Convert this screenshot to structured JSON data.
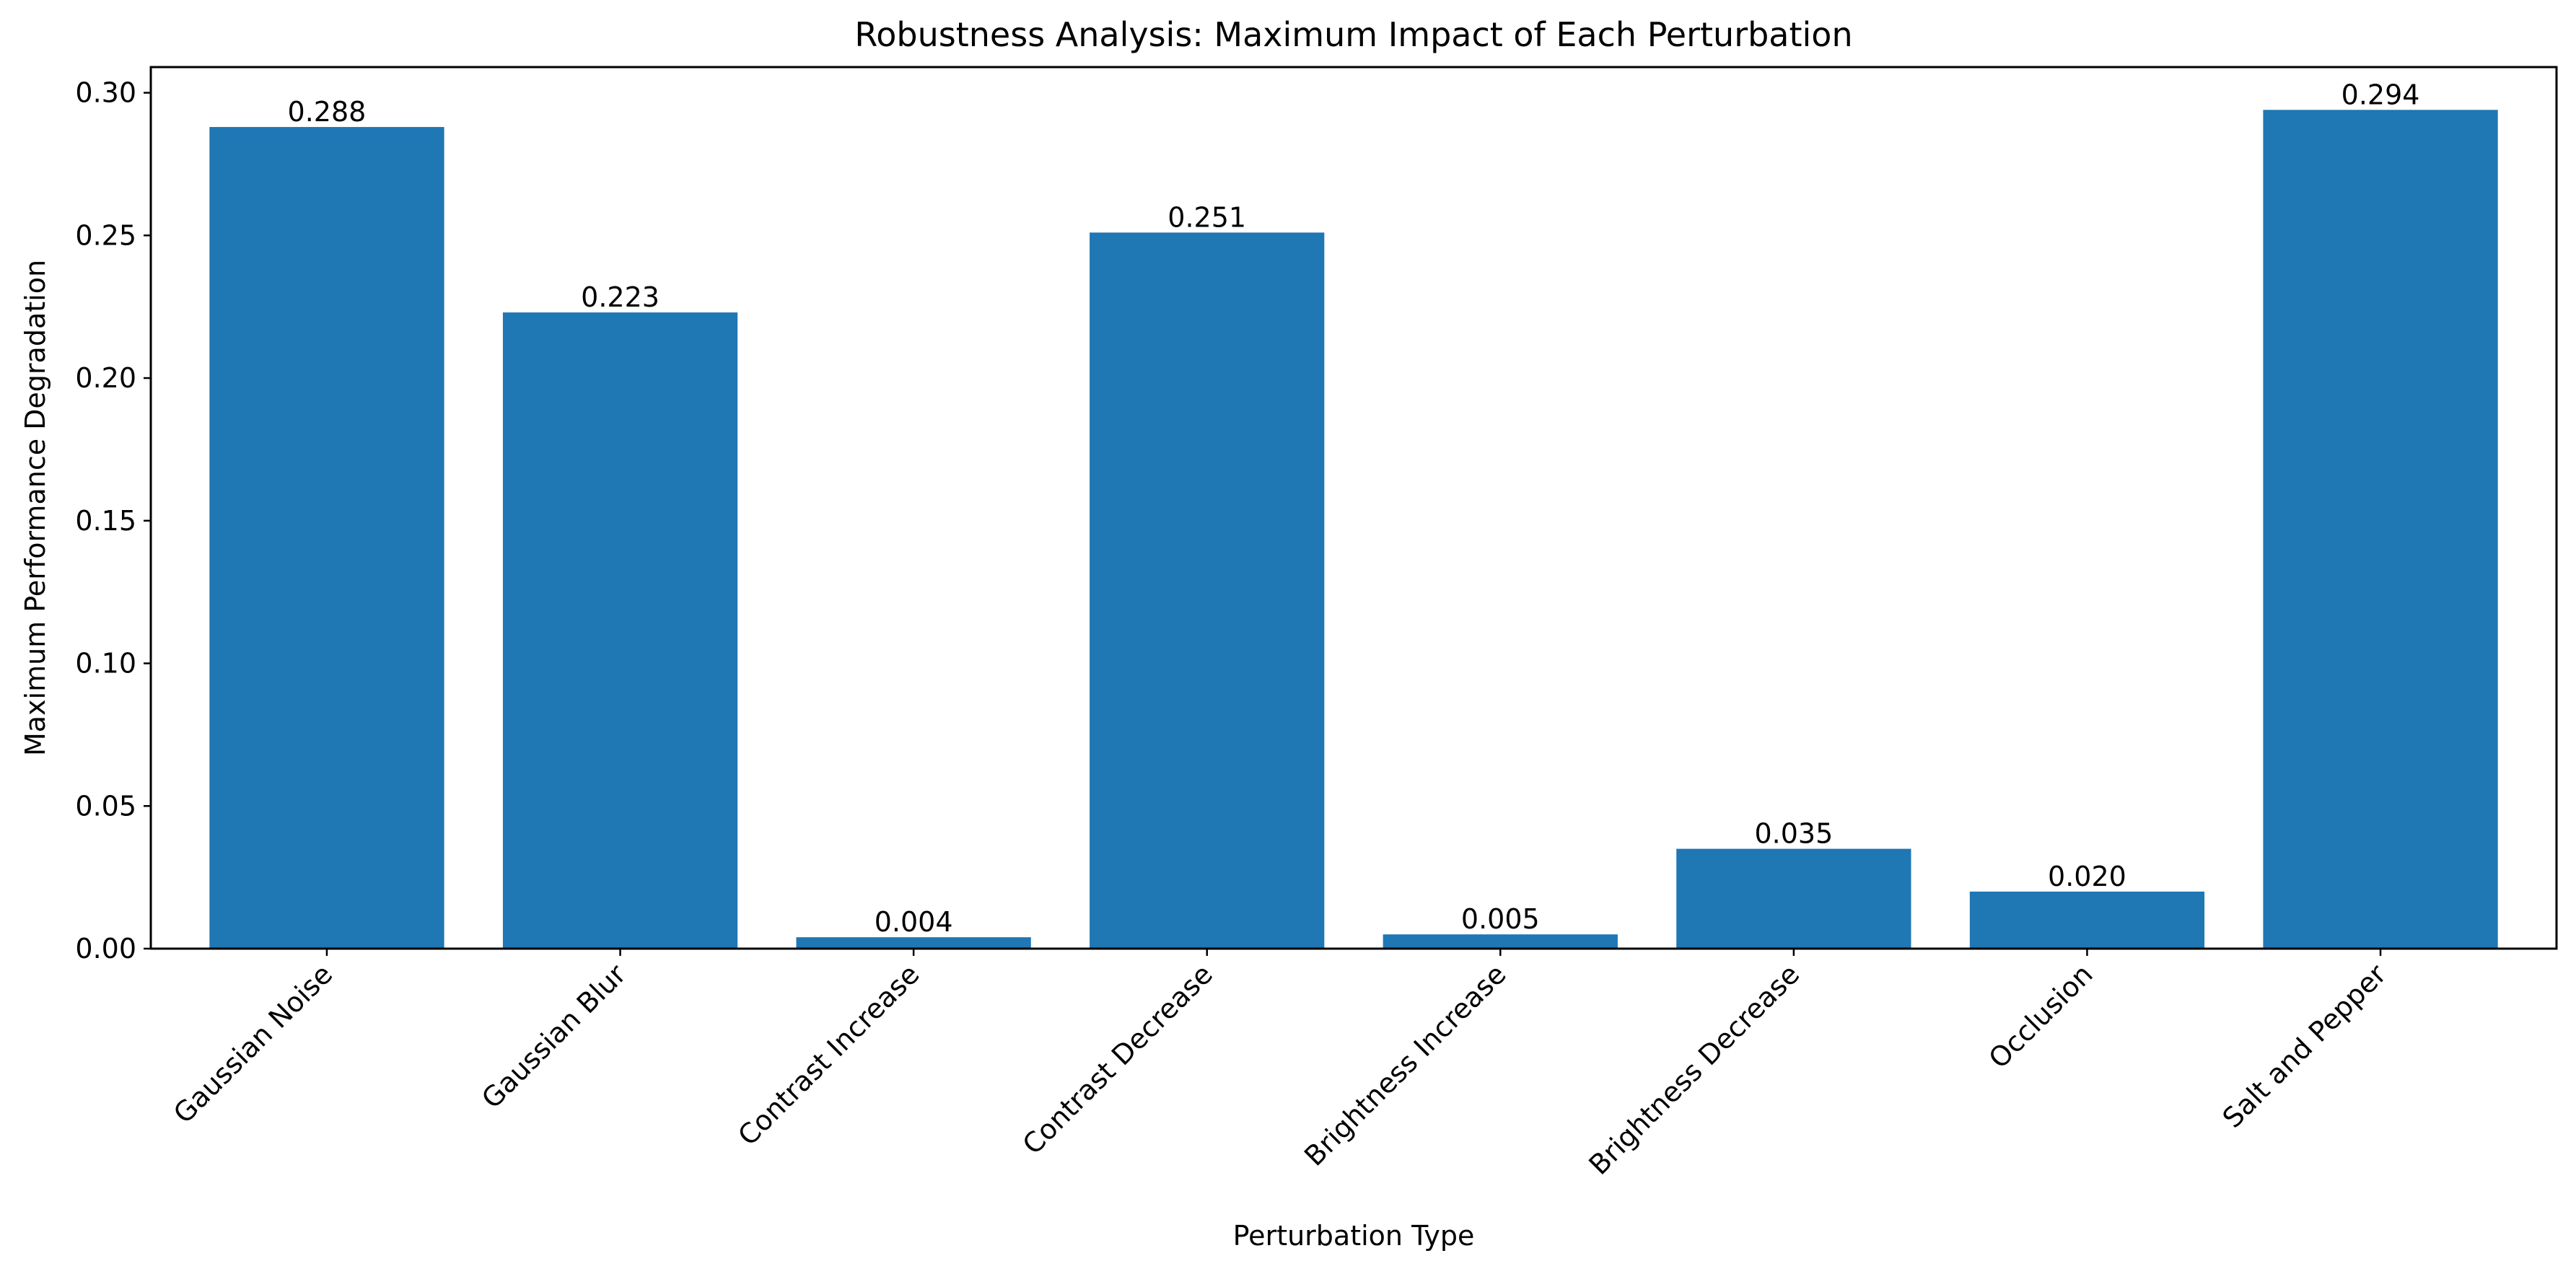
{
  "chart_data": {
    "type": "bar",
    "title": "Robustness Analysis: Maximum Impact of Each Perturbation",
    "xlabel": "Perturbation Type",
    "ylabel": "Maximum Performance Degradation",
    "categories": [
      "Gaussian Noise",
      "Gaussian Blur",
      "Contrast Increase",
      "Contrast Decrease",
      "Brightness Increase",
      "Brightness Decrease",
      "Occlusion",
      "Salt and Pepper"
    ],
    "values": [
      0.288,
      0.223,
      0.004,
      0.251,
      0.005,
      0.035,
      0.02,
      0.294
    ],
    "value_labels": [
      "0.288",
      "0.223",
      "0.004",
      "0.251",
      "0.005",
      "0.035",
      "0.020",
      "0.294"
    ],
    "ylim": [
      0,
      0.309
    ],
    "yticks": [
      0.0,
      0.05,
      0.1,
      0.15,
      0.2,
      0.25,
      0.3
    ],
    "ytick_labels": [
      "0.00",
      "0.05",
      "0.10",
      "0.15",
      "0.20",
      "0.25",
      "0.30"
    ],
    "grid": false,
    "bar_color": "#1f77b4"
  }
}
